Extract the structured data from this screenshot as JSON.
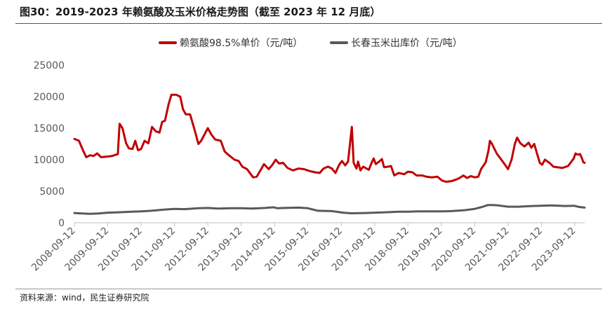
{
  "header": {
    "title": "图30：2019-2023 年赖氨酸及玉米价格走势图（截至 2023 年 12 月底）"
  },
  "footer": {
    "source": "资料来源：wind，民生证券研究院"
  },
  "chart_data": {
    "type": "line",
    "title": "图30：2019-2023 年赖氨酸及玉米价格走势图（截至 2023 年 12 月底）",
    "xlabel": "",
    "ylabel": "",
    "ylim": [
      0,
      25000
    ],
    "yticks": [
      0,
      5000,
      10000,
      15000,
      20000,
      25000
    ],
    "xlim": [
      "2008-09-12",
      "2023-12-29"
    ],
    "xticks": [
      "2008-09-12",
      "2009-09-12",
      "2010-09-12",
      "2011-09-12",
      "2012-09-12",
      "2013-09-12",
      "2014-09-12",
      "2015-09-12",
      "2016-09-12",
      "2017-09-12",
      "2018-09-12",
      "2019-09-12",
      "2020-09-12",
      "2021-09-12",
      "2022-09-12",
      "2023-09-12"
    ],
    "grid": false,
    "legend_position": "top",
    "series": [
      {
        "name": "赖氨酸98.5%单价（元/吨）",
        "color": "#c00000",
        "points": [
          [
            "2008-09-12",
            13300
          ],
          [
            "2008-11-01",
            13000
          ],
          [
            "2008-12-15",
            11500
          ],
          [
            "2009-01-20",
            10400
          ],
          [
            "2009-03-01",
            10700
          ],
          [
            "2009-04-10",
            10600
          ],
          [
            "2009-05-20",
            11000
          ],
          [
            "2009-07-01",
            10400
          ],
          [
            "2009-09-12",
            10500
          ],
          [
            "2009-11-01",
            10600
          ],
          [
            "2010-01-01",
            10900
          ],
          [
            "2010-01-20",
            15700
          ],
          [
            "2010-02-20",
            15000
          ],
          [
            "2010-04-01",
            12600
          ],
          [
            "2010-05-01",
            11800
          ],
          [
            "2010-06-10",
            11700
          ],
          [
            "2010-07-10",
            13000
          ],
          [
            "2010-08-10",
            11500
          ],
          [
            "2010-09-12",
            11700
          ],
          [
            "2010-10-20",
            13000
          ],
          [
            "2010-12-01",
            12600
          ],
          [
            "2011-01-10",
            15200
          ],
          [
            "2011-02-20",
            14500
          ],
          [
            "2011-04-01",
            14300
          ],
          [
            "2011-05-01",
            16000
          ],
          [
            "2011-06-01",
            16200
          ],
          [
            "2011-07-10",
            18800
          ],
          [
            "2011-08-10",
            20300
          ],
          [
            "2011-10-01",
            20300
          ],
          [
            "2011-11-15",
            20000
          ],
          [
            "2011-12-15",
            18000
          ],
          [
            "2012-01-15",
            17200
          ],
          [
            "2012-03-01",
            17200
          ],
          [
            "2012-04-15",
            15000
          ],
          [
            "2012-06-01",
            12500
          ],
          [
            "2012-07-01",
            13000
          ],
          [
            "2012-09-12",
            15000
          ],
          [
            "2012-10-20",
            14000
          ],
          [
            "2012-12-01",
            13200
          ],
          [
            "2013-02-01",
            13000
          ],
          [
            "2013-03-15",
            11300
          ],
          [
            "2013-05-01",
            10700
          ],
          [
            "2013-07-01",
            10000
          ],
          [
            "2013-08-15",
            9800
          ],
          [
            "2013-09-25",
            8900
          ],
          [
            "2013-11-15",
            8500
          ],
          [
            "2014-01-20",
            7200
          ],
          [
            "2014-03-01",
            7300
          ],
          [
            "2014-04-15",
            8400
          ],
          [
            "2014-05-20",
            9300
          ],
          [
            "2014-07-10",
            8500
          ],
          [
            "2014-08-20",
            9200
          ],
          [
            "2014-09-25",
            10000
          ],
          [
            "2014-11-01",
            9400
          ],
          [
            "2014-12-15",
            9500
          ],
          [
            "2015-02-01",
            8700
          ],
          [
            "2015-04-01",
            8300
          ],
          [
            "2015-06-01",
            8600
          ],
          [
            "2015-08-01",
            8500
          ],
          [
            "2015-10-01",
            8200
          ],
          [
            "2015-12-01",
            8000
          ],
          [
            "2016-01-20",
            7900
          ],
          [
            "2016-03-01",
            8600
          ],
          [
            "2016-04-20",
            8900
          ],
          [
            "2016-06-01",
            8600
          ],
          [
            "2016-07-10",
            7900
          ],
          [
            "2016-08-20",
            9200
          ],
          [
            "2016-09-20",
            9800
          ],
          [
            "2016-10-25",
            9100
          ],
          [
            "2016-11-25",
            9700
          ],
          [
            "2017-01-05",
            15200
          ],
          [
            "2017-01-25",
            9500
          ],
          [
            "2017-02-25",
            8600
          ],
          [
            "2017-03-15",
            9700
          ],
          [
            "2017-04-10",
            8300
          ],
          [
            "2017-05-10",
            8900
          ],
          [
            "2017-07-10",
            8400
          ],
          [
            "2017-08-10",
            9500
          ],
          [
            "2017-09-01",
            10200
          ],
          [
            "2017-09-25",
            9300
          ],
          [
            "2017-11-01",
            9700
          ],
          [
            "2017-12-01",
            10100
          ],
          [
            "2017-12-25",
            8800
          ],
          [
            "2018-02-10",
            8900
          ],
          [
            "2018-03-10",
            9000
          ],
          [
            "2018-04-15",
            7500
          ],
          [
            "2018-06-01",
            7900
          ],
          [
            "2018-08-01",
            7700
          ],
          [
            "2018-09-12",
            8100
          ],
          [
            "2018-11-01",
            8000
          ],
          [
            "2018-12-15",
            7500
          ],
          [
            "2019-02-15",
            7500
          ],
          [
            "2019-04-01",
            7300
          ],
          [
            "2019-06-01",
            7200
          ],
          [
            "2019-08-01",
            7300
          ],
          [
            "2019-09-20",
            6700
          ],
          [
            "2019-11-01",
            6500
          ],
          [
            "2020-01-01",
            6600
          ],
          [
            "2020-03-01",
            6900
          ],
          [
            "2020-04-10",
            7200
          ],
          [
            "2020-05-10",
            7500
          ],
          [
            "2020-06-20",
            7100
          ],
          [
            "2020-08-01",
            7400
          ],
          [
            "2020-09-12",
            7200
          ],
          [
            "2020-10-20",
            7300
          ],
          [
            "2020-11-20",
            8500
          ],
          [
            "2021-01-10",
            9600
          ],
          [
            "2021-02-10",
            11500
          ],
          [
            "2021-02-25",
            13000
          ],
          [
            "2021-03-20",
            12500
          ],
          [
            "2021-05-10",
            11000
          ],
          [
            "2021-06-20",
            10200
          ],
          [
            "2021-08-10",
            9200
          ],
          [
            "2021-09-12",
            8500
          ],
          [
            "2021-10-20",
            10000
          ],
          [
            "2021-11-25",
            12500
          ],
          [
            "2021-12-20",
            13500
          ],
          [
            "2022-01-25",
            12600
          ],
          [
            "2022-03-10",
            12100
          ],
          [
            "2022-04-25",
            12700
          ],
          [
            "2022-05-25",
            11900
          ],
          [
            "2022-06-25",
            12500
          ],
          [
            "2022-07-25",
            11000
          ],
          [
            "2022-08-25",
            9500
          ],
          [
            "2022-09-20",
            9200
          ],
          [
            "2022-10-20",
            10000
          ],
          [
            "2022-12-10",
            9500
          ],
          [
            "2023-01-20",
            8900
          ],
          [
            "2023-03-01",
            8800
          ],
          [
            "2023-05-01",
            8700
          ],
          [
            "2023-07-01",
            9000
          ],
          [
            "2023-08-01",
            9600
          ],
          [
            "2023-09-01",
            10200
          ],
          [
            "2023-09-20",
            11000
          ],
          [
            "2023-10-15",
            10800
          ],
          [
            "2023-11-10",
            10900
          ],
          [
            "2023-11-30",
            10200
          ],
          [
            "2023-12-15",
            9600
          ],
          [
            "2023-12-29",
            9500
          ]
        ]
      },
      {
        "name": "长春玉米出库价（元/吨）",
        "color": "#595959",
        "points": [
          [
            "2008-09-12",
            1550
          ],
          [
            "2008-11-01",
            1500
          ],
          [
            "2008-12-20",
            1450
          ],
          [
            "2009-03-01",
            1420
          ],
          [
            "2009-06-01",
            1480
          ],
          [
            "2009-09-12",
            1600
          ],
          [
            "2010-01-01",
            1650
          ],
          [
            "2010-06-01",
            1750
          ],
          [
            "2010-09-12",
            1800
          ],
          [
            "2011-01-01",
            1900
          ],
          [
            "2011-06-01",
            2100
          ],
          [
            "2011-09-12",
            2200
          ],
          [
            "2012-01-01",
            2150
          ],
          [
            "2012-06-01",
            2300
          ],
          [
            "2012-09-12",
            2350
          ],
          [
            "2013-01-01",
            2250
          ],
          [
            "2013-06-01",
            2300
          ],
          [
            "2013-09-12",
            2300
          ],
          [
            "2014-01-01",
            2250
          ],
          [
            "2014-06-01",
            2350
          ],
          [
            "2014-09-01",
            2450
          ],
          [
            "2014-10-15",
            2300
          ],
          [
            "2015-01-01",
            2350
          ],
          [
            "2015-06-01",
            2400
          ],
          [
            "2015-09-12",
            2300
          ],
          [
            "2016-01-01",
            1900
          ],
          [
            "2016-06-01",
            1850
          ],
          [
            "2016-10-01",
            1600
          ],
          [
            "2017-01-01",
            1500
          ],
          [
            "2017-06-01",
            1550
          ],
          [
            "2017-09-12",
            1600
          ],
          [
            "2018-01-01",
            1650
          ],
          [
            "2018-06-01",
            1750
          ],
          [
            "2018-09-12",
            1750
          ],
          [
            "2019-01-01",
            1800
          ],
          [
            "2019-06-01",
            1800
          ],
          [
            "2019-09-12",
            1800
          ],
          [
            "2020-01-01",
            1850
          ],
          [
            "2020-06-01",
            2000
          ],
          [
            "2020-09-12",
            2200
          ],
          [
            "2020-12-01",
            2500
          ],
          [
            "2021-02-01",
            2800
          ],
          [
            "2021-04-01",
            2800
          ],
          [
            "2021-06-01",
            2750
          ],
          [
            "2021-09-12",
            2550
          ],
          [
            "2022-01-01",
            2550
          ],
          [
            "2022-06-01",
            2650
          ],
          [
            "2022-09-12",
            2700
          ],
          [
            "2023-01-01",
            2750
          ],
          [
            "2023-06-01",
            2650
          ],
          [
            "2023-09-01",
            2700
          ],
          [
            "2023-11-01",
            2500
          ],
          [
            "2023-12-29",
            2400
          ]
        ]
      }
    ]
  }
}
